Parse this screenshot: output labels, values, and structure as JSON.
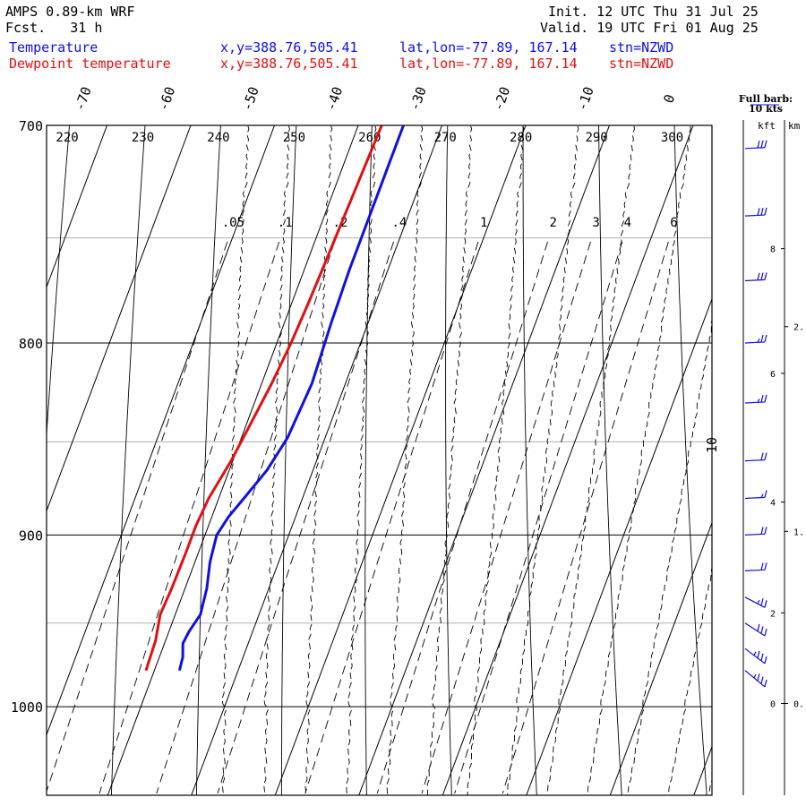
{
  "header": {
    "model": "AMPS 0.89-km WRF",
    "fcst": "Fcst.   31 h",
    "init": "Init. 12 UTC Thu 31 Jul 25",
    "valid": "Valid. 19 UTC Fri 01 Aug 25",
    "temp_label": "Temperature",
    "dew_label": "Dewpoint temperature",
    "temp_xy": "x,y=388.76,505.41",
    "temp_latlon": "lat,lon=-77.89, 167.14",
    "temp_stn": "stn=NZWD",
    "dew_xy": "x,y=388.76,505.41",
    "dew_latlon": "lat,lon=-77.89, 167.14",
    "dew_stn": "stn=NZWD"
  },
  "barb_legend": {
    "line1": "Full barb:",
    "line2": "10 kts"
  },
  "height_axis": {
    "kft_label": "kft",
    "km_label": "km"
  },
  "colors": {
    "temperature": "#1010e0",
    "dewpoint": "#e01010",
    "grid": "#000000",
    "minor_grid": "#b0b0b0"
  },
  "chart_data": {
    "type": "line",
    "title": "AMPS 0.89-km WRF",
    "ylabel": "",
    "xlabel": "",
    "y_scale": "log-pressure",
    "ylim": [
      1040,
      700
    ],
    "isobars": [
      700,
      800,
      900,
      1000
    ],
    "isobar_labels": [
      "700",
      "800",
      "900",
      "1000"
    ],
    "isotherm_labels": [
      "-70",
      "-60",
      "-50",
      "-40",
      "-30",
      "-20",
      "-10",
      "0",
      "10"
    ],
    "theta_labels": [
      "220",
      "230",
      "240",
      "250",
      "260",
      "270",
      "280",
      "290",
      "300"
    ],
    "mixing_ratio_labels": [
      ".05",
      ".1",
      ".2",
      ".4",
      "1",
      "2",
      "3",
      "4",
      "6"
    ],
    "series": [
      {
        "name": "Temperature",
        "color": "#1010e0",
        "points": [
          {
            "p": 978,
            "t": -37.0
          },
          {
            "p": 970,
            "t": -37.2
          },
          {
            "p": 962,
            "t": -37.8
          },
          {
            "p": 955,
            "t": -37.6
          },
          {
            "p": 945,
            "t": -37.0
          },
          {
            "p": 930,
            "t": -37.4
          },
          {
            "p": 915,
            "t": -38.2
          },
          {
            "p": 900,
            "t": -38.6
          },
          {
            "p": 890,
            "t": -38.0
          },
          {
            "p": 880,
            "t": -37.0
          },
          {
            "p": 865,
            "t": -35.5
          },
          {
            "p": 848,
            "t": -34.5
          },
          {
            "p": 820,
            "t": -34.0
          },
          {
            "p": 790,
            "t": -34.4
          },
          {
            "p": 765,
            "t": -34.6
          },
          {
            "p": 745,
            "t": -34.6
          },
          {
            "p": 720,
            "t": -34.6
          },
          {
            "p": 700,
            "t": -34.6
          }
        ]
      },
      {
        "name": "Dewpoint temperature",
        "color": "#e01010",
        "points": [
          {
            "p": 978,
            "t": -41.0
          },
          {
            "p": 960,
            "t": -41.2
          },
          {
            "p": 945,
            "t": -41.8
          },
          {
            "p": 930,
            "t": -41.6
          },
          {
            "p": 910,
            "t": -41.5
          },
          {
            "p": 895,
            "t": -41.5
          },
          {
            "p": 880,
            "t": -41.2
          },
          {
            "p": 860,
            "t": -40.2
          },
          {
            "p": 840,
            "t": -39.5
          },
          {
            "p": 820,
            "t": -38.8
          },
          {
            "p": 800,
            "t": -38.3
          },
          {
            "p": 780,
            "t": -38.0
          },
          {
            "p": 760,
            "t": -37.8
          },
          {
            "p": 740,
            "t": -37.6
          },
          {
            "p": 720,
            "t": -37.4
          },
          {
            "p": 700,
            "t": -37.2
          }
        ]
      }
    ],
    "wind_barbs": [
      {
        "p": 710,
        "speed_kts": 30
      },
      {
        "p": 740,
        "speed_kts": 30
      },
      {
        "p": 770,
        "speed_kts": 30
      },
      {
        "p": 800,
        "speed_kts": 25
      },
      {
        "p": 830,
        "speed_kts": 25
      },
      {
        "p": 860,
        "speed_kts": 20
      },
      {
        "p": 880,
        "speed_kts": 15
      },
      {
        "p": 900,
        "speed_kts": 20
      },
      {
        "p": 920,
        "speed_kts": 20
      },
      {
        "p": 935,
        "speed_kts": 25
      },
      {
        "p": 950,
        "speed_kts": 30
      },
      {
        "p": 965,
        "speed_kts": 35
      },
      {
        "p": 978,
        "speed_kts": 35
      }
    ],
    "height_ticks": {
      "kft": [
        {
          "p": 998,
          "label": "0"
        },
        {
          "p": 944,
          "label": "2"
        },
        {
          "p": 882,
          "label": "4"
        },
        {
          "p": 815,
          "label": "6"
        },
        {
          "p": 755,
          "label": "8"
        }
      ],
      "km": [
        {
          "p": 998,
          "label": "0."
        },
        {
          "p": 898,
          "label": "1."
        },
        {
          "p": 792,
          "label": "2."
        }
      ]
    }
  }
}
